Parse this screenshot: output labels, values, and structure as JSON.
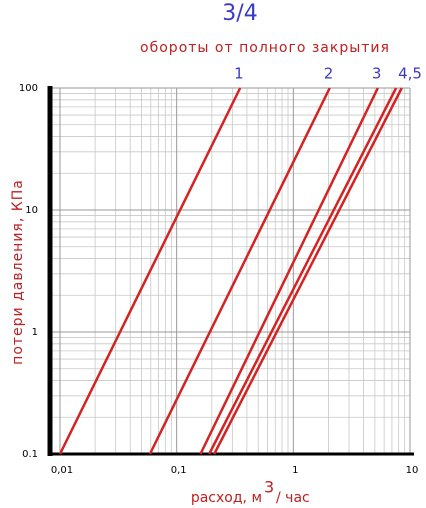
{
  "chart_data": {
    "type": "line",
    "title": "3/4",
    "subtitle": "обороты от полного закрытия",
    "ylabel": "потери давления, КПа",
    "xlabel": [
      "расход, м",
      "3",
      "/ час"
    ],
    "xscale": "log",
    "yscale": "log",
    "grid": true,
    "xlim": [
      0.01,
      10
    ],
    "ylim": [
      0.1,
      100
    ],
    "xticks": [
      {
        "value": 0.01,
        "label": "0,01"
      },
      {
        "value": 0.1,
        "label": "0,1"
      },
      1,
      10
    ],
    "yticks": [
      0.1,
      1,
      10,
      100
    ],
    "series": [
      {
        "color": "#d42323",
        "x": [
          0.01,
          0.35
        ],
        "values": [
          0.1,
          100
        ]
      },
      {
        "color": "#d42323",
        "x": [
          0.059,
          2.05
        ],
        "values": [
          0.1,
          100
        ]
      },
      {
        "color": "#d42323",
        "x": [
          0.16,
          5.3
        ],
        "values": [
          0.1,
          100
        ]
      },
      {
        "color": "#d42323",
        "x": [
          0.19,
          7.6
        ],
        "values": [
          0.1,
          100
        ]
      },
      {
        "color": "#d42323",
        "x": [
          0.21,
          8.5
        ],
        "values": [
          0.1,
          100
        ]
      }
    ],
    "line_labels": [
      "1",
      "2",
      "3",
      "4,5"
    ]
  }
}
